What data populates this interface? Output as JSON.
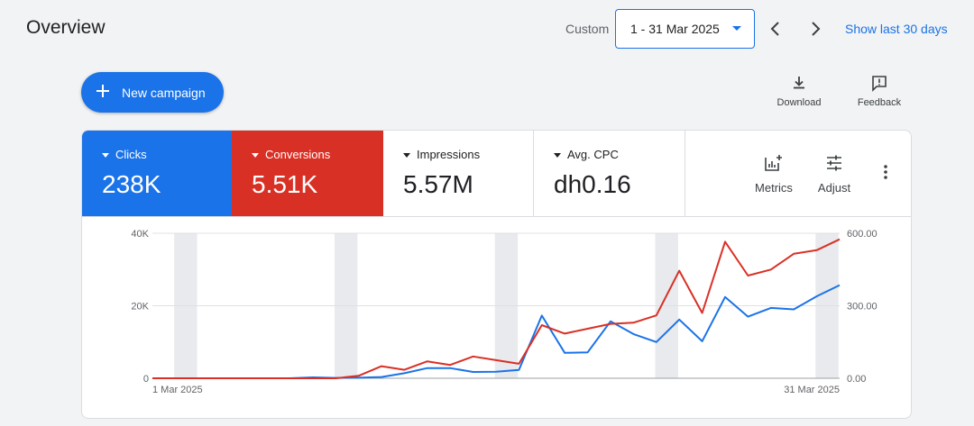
{
  "header": {
    "title": "Overview",
    "range_label": "Custom",
    "date_range": "1 - 31 Mar 2025",
    "show_last": "Show last 30 days"
  },
  "actions": {
    "new_campaign": "New campaign",
    "download": "Download",
    "feedback": "Feedback"
  },
  "metrics": [
    {
      "label": "Clicks",
      "value": "238K",
      "selected": true,
      "color": "#1a73e8"
    },
    {
      "label": "Conversions",
      "value": "5.51K",
      "selected": true,
      "color": "#d93025"
    },
    {
      "label": "Impressions",
      "value": "5.57M",
      "selected": false
    },
    {
      "label": "Avg. CPC",
      "value": "dh0.16",
      "selected": false
    }
  ],
  "card_actions": {
    "metrics": "Metrics",
    "adjust": "Adjust"
  },
  "colors": {
    "accent": "#1a73e8",
    "conversions": "#d93025",
    "weekend_band": "#e8eaed"
  },
  "chart_data": {
    "type": "line",
    "x": [
      "1 Mar 2025",
      "2 Mar 2025",
      "3 Mar 2025",
      "4 Mar 2025",
      "5 Mar 2025",
      "6 Mar 2025",
      "7 Mar 2025",
      "8 Mar 2025",
      "9 Mar 2025",
      "10 Mar 2025",
      "11 Mar 2025",
      "12 Mar 2025",
      "13 Mar 2025",
      "14 Mar 2025",
      "15 Mar 2025",
      "16 Mar 2025",
      "17 Mar 2025",
      "18 Mar 2025",
      "19 Mar 2025",
      "20 Mar 2025",
      "21 Mar 2025",
      "22 Mar 2025",
      "23 Mar 2025",
      "24 Mar 2025",
      "25 Mar 2025",
      "26 Mar 2025",
      "27 Mar 2025",
      "28 Mar 2025",
      "29 Mar 2025",
      "30 Mar 2025",
      "31 Mar 2025"
    ],
    "x_tick_labels": [
      "1 Mar 2025",
      "31 Mar 2025"
    ],
    "series": [
      {
        "name": "Clicks",
        "axis": "left",
        "color": "#1a73e8",
        "values": [
          0,
          0,
          0,
          0,
          0,
          0,
          0,
          250,
          100,
          150,
          350,
          1400,
          2800,
          2800,
          1750,
          1800,
          2300,
          17300,
          7000,
          7150,
          15700,
          12200,
          10000,
          16200,
          10200,
          22400,
          17000,
          19400,
          19000,
          22600,
          25700
        ]
      },
      {
        "name": "Conversions",
        "axis": "right",
        "color": "#d93025",
        "values": [
          0,
          0,
          0,
          0,
          0,
          0,
          0,
          0,
          0,
          10,
          50,
          35,
          70,
          55,
          90,
          75,
          60,
          220,
          185,
          205,
          225,
          230,
          260,
          445,
          270,
          565,
          425,
          450,
          515,
          530,
          575
        ]
      }
    ],
    "y_left": {
      "min": 0,
      "max": 40000,
      "ticks": [
        0,
        20000,
        40000
      ],
      "tick_labels": [
        "0",
        "20K",
        "40K"
      ]
    },
    "y_right": {
      "min": 0,
      "max": 600,
      "ticks": [
        0,
        300,
        600
      ],
      "tick_labels": [
        "0.00",
        "300.00",
        "600.00"
      ]
    },
    "weekend_bands": [
      [
        1,
        2
      ],
      [
        8,
        9
      ],
      [
        15,
        16
      ],
      [
        22,
        23
      ],
      [
        29,
        30
      ]
    ],
    "grid": true
  }
}
